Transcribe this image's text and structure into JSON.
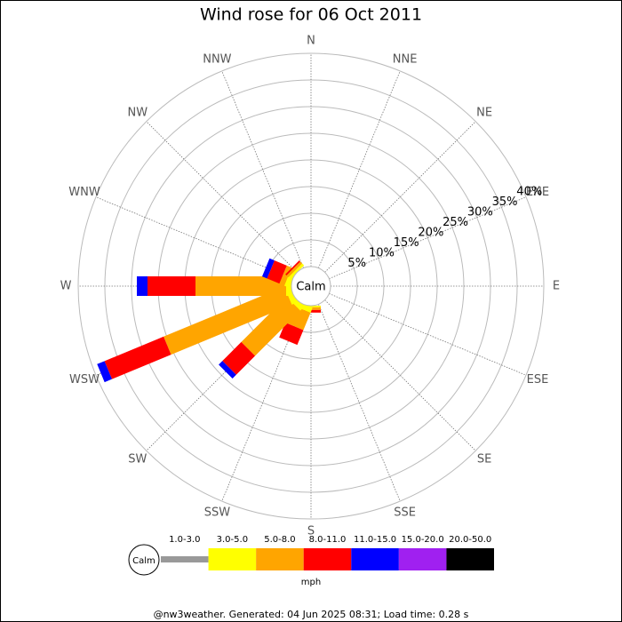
{
  "chart_data": {
    "type": "windrose",
    "title": "Wind rose for 06 Oct 2011",
    "categories": [
      "N",
      "NNE",
      "NE",
      "ENE",
      "E",
      "ESE",
      "SE",
      "SSE",
      "S",
      "SSW",
      "SW",
      "WSW",
      "W",
      "WNW",
      "NW",
      "NNW"
    ],
    "rlim": [
      0,
      40
    ],
    "rticks": [
      {
        "value": 5,
        "label": "5%"
      },
      {
        "value": 10,
        "label": "10%"
      },
      {
        "value": 15,
        "label": "15%"
      },
      {
        "value": 20,
        "label": "20%"
      },
      {
        "value": 25,
        "label": "25%"
      },
      {
        "value": 30,
        "label": "30%"
      },
      {
        "value": 35,
        "label": "35%"
      },
      {
        "value": 40,
        "label": "40%"
      }
    ],
    "calm_label": "Calm",
    "unit": "mph",
    "series": [
      {
        "name": "1.0-3.0",
        "color": "#999999",
        "values": [
          0,
          0,
          0,
          0,
          0,
          0,
          0,
          0,
          0,
          0,
          0,
          0,
          0,
          0,
          0,
          0
        ]
      },
      {
        "name": "3.0-5.0",
        "color": "#ffff00",
        "values": [
          0,
          0,
          0,
          0,
          0,
          0,
          0,
          0,
          0.3,
          1,
          1,
          1,
          1,
          1,
          0.5,
          0
        ]
      },
      {
        "name": "5.0-8.0",
        "color": "#ffa500",
        "values": [
          0,
          0,
          0,
          0,
          0,
          0,
          0,
          0,
          0.5,
          3.5,
          12,
          24.5,
          17,
          1,
          0.5,
          0
        ]
      },
      {
        "name": "8.0-11.0",
        "color": "#ff0000",
        "values": [
          0,
          0,
          0,
          0,
          0,
          0,
          0,
          0,
          0.5,
          3,
          5,
          12,
          9,
          2.5,
          0.3,
          0
        ]
      },
      {
        "name": "11.0-15.0",
        "color": "#0000ff",
        "values": [
          0,
          0,
          0,
          0,
          0,
          0,
          0,
          0,
          0,
          0,
          1,
          1.5,
          2,
          1,
          0,
          0
        ]
      },
      {
        "name": "15.0-20.0",
        "color": "#a020f0",
        "values": [
          0,
          0,
          0,
          0,
          0,
          0,
          0,
          0,
          0,
          0,
          0,
          0,
          0,
          0,
          0,
          0
        ]
      },
      {
        "name": "20.0-50.0",
        "color": "#000000",
        "values": [
          0,
          0,
          0,
          0,
          0,
          0,
          0,
          0,
          0,
          0,
          0,
          0,
          0,
          0,
          0,
          0
        ]
      }
    ],
    "footer": "@nw3weather. Generated: 04 Jun 2025 08:31; Load time: 0.28 s"
  }
}
